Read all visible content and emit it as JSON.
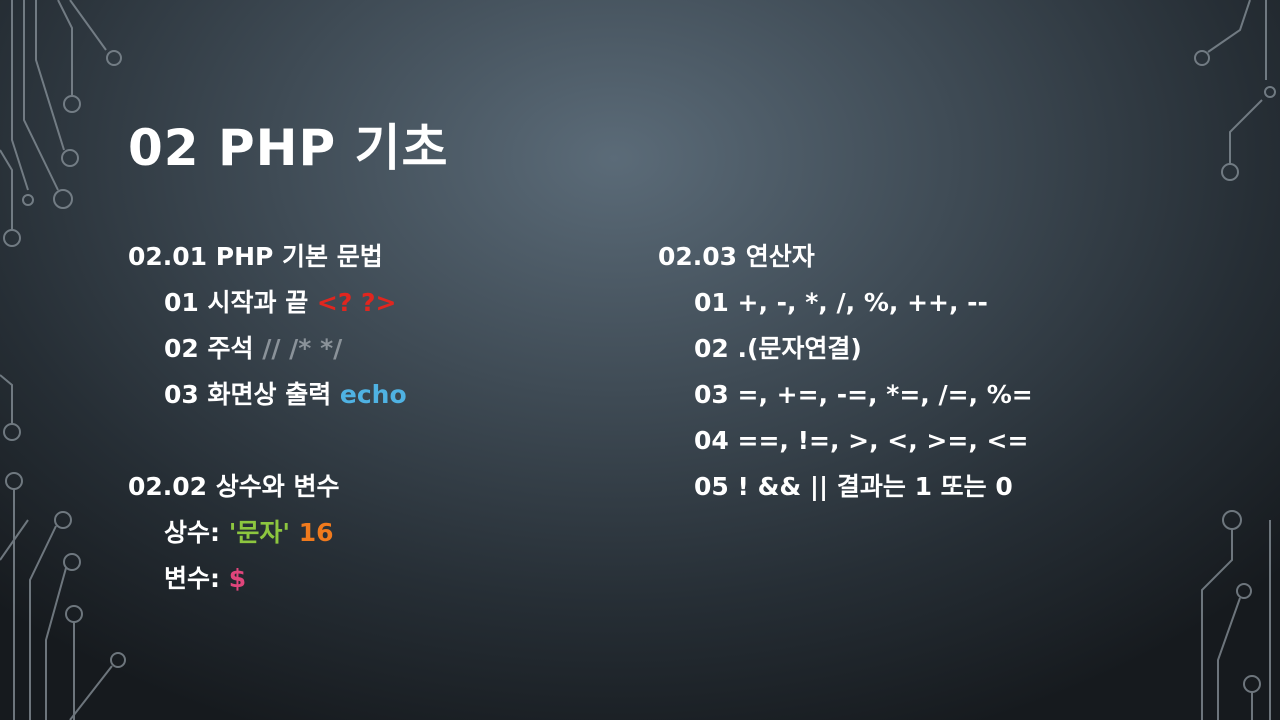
{
  "slide": {
    "title": "02 PHP 기초",
    "colors": {
      "tag": "#e0261f",
      "comment": "#8a9299",
      "echo": "#4fb2e3",
      "string": "#8dc63f",
      "number": "#f07a1d",
      "variable": "#e0457b"
    }
  },
  "left": {
    "s1": {
      "heading": "02.01 PHP 기본 문법",
      "i1_text": "01 시작과 끝 ",
      "i1_code": "<? ?>",
      "i2_text": "02 주석 ",
      "i2_code": "// /* */",
      "i3_text": "03 화면상 출력 ",
      "i3_code": "echo"
    },
    "s2": {
      "heading": "02.02 상수와 변수",
      "const_label": "상수: ",
      "const_str": "'문자'",
      "const_num": "16",
      "var_label": "변수: ",
      "var_sym": "$"
    }
  },
  "right": {
    "heading": "02.03 연산자",
    "items": [
      "01 +, -, *, /, %, ++, --",
      "02 .(문자연결)",
      "03 =, +=, -=, *=, /=, %=",
      "04 ==, !=, >, <, >=, <=",
      "05 ! && || 결과는 1 또는 0"
    ]
  }
}
